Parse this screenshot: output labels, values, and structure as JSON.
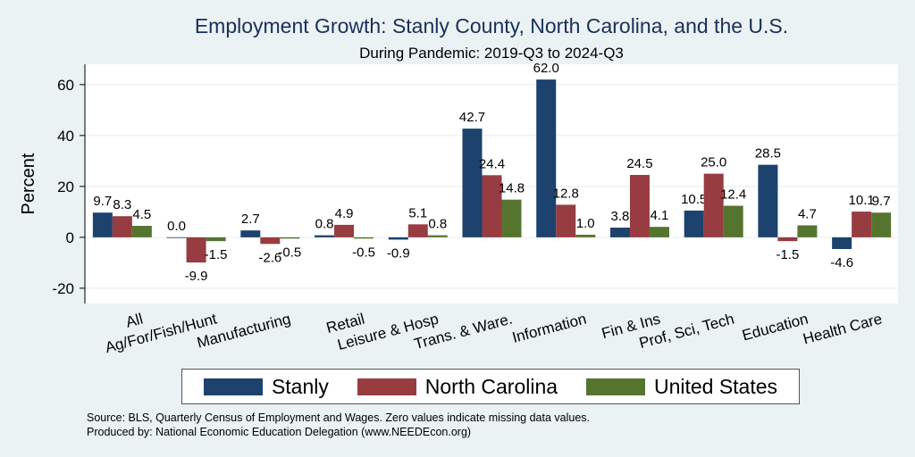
{
  "chart_data": {
    "type": "bar",
    "title": "Employment Growth: Stanly County, North Carolina, and the U.S.",
    "subtitle": "During Pandemic: 2019-Q3 to 2024-Q3",
    "ylabel": "Percent",
    "xlabel": "",
    "ylim": [
      -26,
      68
    ],
    "yticks": [
      -20,
      0,
      20,
      40,
      60
    ],
    "yticklabels": [
      "-20",
      "0",
      "20",
      "40",
      "60"
    ],
    "grid": true,
    "legend_position": "bottom",
    "categories": [
      "All",
      "Ag/For/Fish/Hunt",
      "Manufacturing",
      "Retail",
      "Leisure & Hosp",
      "Trans. & Ware.",
      "Information",
      "Fin & Ins",
      "Prof, Sci, Tech",
      "Education",
      "Health Care"
    ],
    "series": [
      {
        "name": "Stanly",
        "color": "#1c426d",
        "values": [
          9.7,
          0.0,
          2.7,
          0.8,
          -0.9,
          42.7,
          62.0,
          3.8,
          10.5,
          28.5,
          -4.6
        ],
        "labels": [
          "9.7",
          "0.0",
          "2.7",
          "0.8",
          "-0.9",
          "42.7",
          "62.0",
          "3.8",
          "10.5",
          "28.5",
          "-4.6"
        ]
      },
      {
        "name": "North Carolina",
        "color": "#973c40",
        "values": [
          8.3,
          -9.9,
          -2.6,
          4.9,
          5.1,
          24.4,
          12.8,
          24.5,
          25.0,
          -1.5,
          10.1
        ],
        "labels": [
          "8.3",
          "-9.9",
          "-2.6",
          "4.9",
          "5.1",
          "24.4",
          "12.8",
          "24.5",
          "25.0",
          "-1.5",
          "10.1"
        ]
      },
      {
        "name": "United States",
        "color": "#55752f",
        "values": [
          4.5,
          -1.5,
          -0.5,
          -0.5,
          0.8,
          14.8,
          1.0,
          4.1,
          12.4,
          4.7,
          9.7
        ],
        "labels": [
          "4.5",
          "-1.5",
          "-0.5",
          "-0.5",
          "0.8",
          "14.8",
          "1.0",
          "4.1",
          "12.4",
          "4.7",
          "9.7"
        ]
      }
    ]
  },
  "footnote": {
    "line1": "Source: BLS, Quarterly Census of Employment and Wages. Zero values indicate missing data values.",
    "line2": "Produced by: National Economic Education Delegation (www.NEEDEcon.org)"
  }
}
